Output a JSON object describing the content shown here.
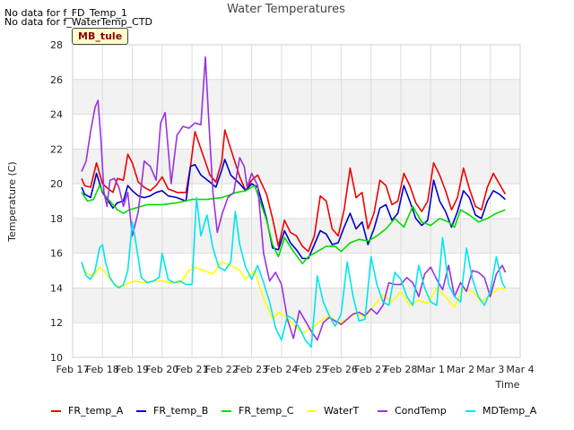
{
  "notes": [
    "No data for f_FD_Temp_1",
    "No data for f_WaterTemp_CTD"
  ],
  "badge": "MB_tule",
  "chart_data": {
    "type": "line",
    "title": "Water Temperatures",
    "xlabel": "Time",
    "ylabel": "Temperature (C)",
    "ylim": [
      10,
      28
    ],
    "yticks": [
      10,
      12,
      14,
      16,
      18,
      20,
      22,
      24,
      26,
      28
    ],
    "xlim": [
      "2023-02-17",
      "2023-03-04"
    ],
    "x_ticks": [
      "Feb 17",
      "Feb 18",
      "Feb 19",
      "Feb 20",
      "Feb 21",
      "Feb 22",
      "Feb 23",
      "Feb 24",
      "Feb 25",
      "Feb 26",
      "Feb 27",
      "Feb 28",
      "Mar 1",
      "Mar 2",
      "Mar 3",
      "Mar 4"
    ],
    "grid": true,
    "banded_background": true,
    "legend_position": "bottom",
    "series": [
      {
        "name": "FR_temp_A",
        "color": "#ee0000",
        "x": [
          0.3,
          0.4,
          0.6,
          0.8,
          1.0,
          1.2,
          1.35,
          1.5,
          1.7,
          1.85,
          2.0,
          2.2,
          2.4,
          2.6,
          2.8,
          3.0,
          3.2,
          3.5,
          3.8,
          3.95,
          4.1,
          4.3,
          4.6,
          4.8,
          5.0,
          5.1,
          5.3,
          5.6,
          5.8,
          6.0,
          6.2,
          6.5,
          6.7,
          6.9,
          7.1,
          7.3,
          7.5,
          7.7,
          7.9,
          8.1,
          8.3,
          8.5,
          8.7,
          8.9,
          9.1,
          9.3,
          9.5,
          9.7,
          9.9,
          10.1,
          10.3,
          10.5,
          10.7,
          10.9,
          11.1,
          11.3,
          11.5,
          11.7,
          11.9,
          12.1,
          12.3,
          12.5,
          12.7,
          12.9,
          13.1,
          13.3,
          13.5,
          13.7,
          13.9,
          14.1,
          14.3,
          14.5
        ],
        "y": [
          20.3,
          19.9,
          19.8,
          21.2,
          20.0,
          19.7,
          19.5,
          20.3,
          20.2,
          21.7,
          21.2,
          20.1,
          19.8,
          19.6,
          19.9,
          20.4,
          19.7,
          19.5,
          19.5,
          21.0,
          23.0,
          22.0,
          20.5,
          20.1,
          21.3,
          23.1,
          22.0,
          20.4,
          19.6,
          20.2,
          20.5,
          19.4,
          18.0,
          16.4,
          17.9,
          17.2,
          17.0,
          16.4,
          16.1,
          17.0,
          19.3,
          19.0,
          17.4,
          17.0,
          18.5,
          20.9,
          19.2,
          19.5,
          17.4,
          18.3,
          20.2,
          19.9,
          18.8,
          19.0,
          20.6,
          19.9,
          18.9,
          18.4,
          19.0,
          21.2,
          20.5,
          19.6,
          18.5,
          19.2,
          20.9,
          19.7,
          18.7,
          18.5,
          19.8,
          20.6,
          20.0,
          19.4
        ]
      },
      {
        "name": "FR_temp_B",
        "color": "#0000cc",
        "x": [
          0.3,
          0.4,
          0.6,
          0.8,
          1.0,
          1.2,
          1.35,
          1.5,
          1.7,
          1.85,
          2.0,
          2.2,
          2.4,
          2.6,
          2.8,
          3.0,
          3.2,
          3.5,
          3.8,
          3.95,
          4.1,
          4.3,
          4.6,
          4.8,
          5.0,
          5.1,
          5.3,
          5.6,
          5.8,
          6.0,
          6.2,
          6.5,
          6.7,
          6.9,
          7.1,
          7.3,
          7.5,
          7.7,
          7.9,
          8.1,
          8.3,
          8.5,
          8.7,
          8.9,
          9.1,
          9.3,
          9.5,
          9.7,
          9.9,
          10.1,
          10.3,
          10.5,
          10.7,
          10.9,
          11.1,
          11.3,
          11.5,
          11.7,
          11.9,
          12.1,
          12.3,
          12.5,
          12.7,
          12.9,
          13.1,
          13.3,
          13.5,
          13.7,
          13.9,
          14.1,
          14.3,
          14.5
        ],
        "y": [
          19.8,
          19.4,
          19.2,
          20.6,
          19.5,
          19.0,
          18.6,
          18.9,
          19.0,
          19.9,
          19.6,
          19.3,
          19.2,
          19.3,
          19.5,
          19.6,
          19.3,
          19.2,
          19.0,
          21.0,
          21.1,
          20.5,
          20.1,
          19.8,
          20.8,
          21.4,
          20.5,
          20.0,
          19.6,
          20.0,
          19.8,
          18.0,
          16.3,
          16.2,
          17.3,
          16.6,
          16.2,
          15.7,
          15.7,
          16.5,
          17.3,
          17.1,
          16.5,
          16.6,
          17.5,
          18.3,
          17.4,
          17.8,
          16.5,
          17.4,
          18.6,
          18.8,
          17.9,
          18.3,
          19.9,
          19.0,
          18.0,
          17.6,
          17.9,
          20.2,
          19.0,
          18.4,
          17.5,
          18.4,
          19.6,
          19.2,
          18.2,
          18.0,
          19.0,
          19.6,
          19.4,
          19.1
        ]
      },
      {
        "name": "FR_temp_C",
        "color": "#00dd00",
        "x": [
          0.3,
          0.5,
          0.7,
          0.9,
          1.1,
          1.3,
          1.5,
          1.7,
          1.9,
          2.1,
          2.5,
          3.0,
          3.5,
          4.0,
          4.5,
          5.0,
          5.5,
          5.8,
          6.1,
          6.5,
          6.7,
          6.9,
          7.1,
          7.4,
          7.7,
          7.9,
          8.2,
          8.5,
          8.8,
          9.0,
          9.3,
          9.6,
          9.9,
          10.2,
          10.5,
          10.8,
          11.1,
          11.4,
          11.7,
          12.0,
          12.3,
          12.6,
          12.8,
          13.0,
          13.3,
          13.6,
          13.9,
          14.2,
          14.5
        ],
        "y": [
          19.5,
          19.0,
          19.1,
          19.9,
          19.3,
          18.9,
          18.5,
          18.3,
          18.5,
          18.6,
          18.8,
          18.8,
          18.9,
          19.1,
          19.1,
          19.2,
          19.5,
          19.6,
          19.9,
          17.9,
          16.5,
          15.8,
          16.9,
          16.1,
          15.4,
          15.8,
          16.1,
          16.4,
          16.4,
          16.1,
          16.6,
          16.8,
          16.7,
          17.0,
          17.4,
          18.0,
          17.5,
          18.7,
          17.8,
          17.6,
          18.0,
          17.8,
          17.5,
          18.5,
          18.2,
          17.8,
          18.0,
          18.3,
          18.5
        ]
      },
      {
        "name": "WaterT",
        "color": "#ffff00",
        "x": [
          0.3,
          0.5,
          0.7,
          0.9,
          1.1,
          1.3,
          1.5,
          1.7,
          1.9,
          2.1,
          2.4,
          2.7,
          3.0,
          3.3,
          3.6,
          3.9,
          4.1,
          4.4,
          4.7,
          5.0,
          5.3,
          5.6,
          5.8,
          6.1,
          6.4,
          6.7,
          6.9,
          7.1,
          7.3,
          7.5,
          7.7,
          7.9,
          8.1,
          8.3,
          8.6,
          8.9,
          9.2,
          9.5,
          9.8,
          10.1,
          10.4,
          10.7,
          11.0,
          11.3,
          11.6,
          11.9,
          12.2,
          12.5,
          12.8,
          13.1,
          13.4,
          13.7,
          14.0,
          14.3,
          14.5
        ],
        "y": [
          15.3,
          14.8,
          14.7,
          15.2,
          14.9,
          14.4,
          14.1,
          14.1,
          14.3,
          14.4,
          14.3,
          14.4,
          14.4,
          14.3,
          14.3,
          15.0,
          15.2,
          15.0,
          14.8,
          15.5,
          15.3,
          15.0,
          14.5,
          15.0,
          13.4,
          12.2,
          12.6,
          12.4,
          12.1,
          11.7,
          11.4,
          11.6,
          11.8,
          12.1,
          12.4,
          12.0,
          12.2,
          12.6,
          12.3,
          13.0,
          13.6,
          13.2,
          13.8,
          13.0,
          13.3,
          13.1,
          14.0,
          13.5,
          12.9,
          14.0,
          13.8,
          13.2,
          13.6,
          14.0,
          13.9
        ]
      },
      {
        "name": "CondTemp",
        "color": "#9933dd",
        "x": [
          0.3,
          0.45,
          0.6,
          0.75,
          0.85,
          0.95,
          1.05,
          1.15,
          1.25,
          1.4,
          1.55,
          1.7,
          1.85,
          2.0,
          2.2,
          2.4,
          2.6,
          2.8,
          2.95,
          3.1,
          3.3,
          3.5,
          3.7,
          3.9,
          4.1,
          4.3,
          4.45,
          4.55,
          4.7,
          4.85,
          5.0,
          5.2,
          5.4,
          5.6,
          5.75,
          5.85,
          6.0,
          6.2,
          6.4,
          6.6,
          6.8,
          7.0,
          7.2,
          7.4,
          7.6,
          7.8,
          8.0,
          8.2,
          8.4,
          8.6,
          8.8,
          9.0,
          9.2,
          9.4,
          9.6,
          9.8,
          10.0,
          10.2,
          10.4,
          10.6,
          10.8,
          11.0,
          11.2,
          11.4,
          11.6,
          11.8,
          12.0,
          12.2,
          12.4,
          12.6,
          12.8,
          13.0,
          13.2,
          13.4,
          13.6,
          13.8,
          14.0,
          14.2,
          14.4,
          14.5
        ],
        "y": [
          20.7,
          21.3,
          23.0,
          24.4,
          24.8,
          22.5,
          19.5,
          18.7,
          20.2,
          20.3,
          19.8,
          18.7,
          19.5,
          17.0,
          18.4,
          21.3,
          21.0,
          20.2,
          23.5,
          24.1,
          20.0,
          22.8,
          23.3,
          23.2,
          23.5,
          23.4,
          27.3,
          24.0,
          19.5,
          17.2,
          18.2,
          19.2,
          19.5,
          21.5,
          21.0,
          19.8,
          20.6,
          19.9,
          16.0,
          14.4,
          14.9,
          14.2,
          12.2,
          11.1,
          12.7,
          12.1,
          11.5,
          11.0,
          12.0,
          12.3,
          12.1,
          11.9,
          12.2,
          12.5,
          12.6,
          12.4,
          12.8,
          12.5,
          13.0,
          14.3,
          14.2,
          14.2,
          14.6,
          14.3,
          13.5,
          14.8,
          15.2,
          14.5,
          13.9,
          15.3,
          13.5,
          14.3,
          13.8,
          15.0,
          14.9,
          14.6,
          13.5,
          14.8,
          15.3,
          14.9
        ]
      },
      {
        "name": "MDTemp_A",
        "color": "#00e5ee",
        "x": [
          0.3,
          0.45,
          0.6,
          0.75,
          0.9,
          1.0,
          1.1,
          1.25,
          1.4,
          1.55,
          1.7,
          1.85,
          2.0,
          2.1,
          2.3,
          2.5,
          2.7,
          2.9,
          3.0,
          3.2,
          3.4,
          3.6,
          3.8,
          4.0,
          4.15,
          4.3,
          4.5,
          4.7,
          4.9,
          5.1,
          5.3,
          5.45,
          5.6,
          5.8,
          6.0,
          6.2,
          6.4,
          6.6,
          6.8,
          7.0,
          7.2,
          7.4,
          7.6,
          7.8,
          8.0,
          8.2,
          8.4,
          8.6,
          8.8,
          9.0,
          9.2,
          9.4,
          9.6,
          9.8,
          10.0,
          10.2,
          10.4,
          10.6,
          10.8,
          11.0,
          11.2,
          11.4,
          11.6,
          11.8,
          12.0,
          12.2,
          12.4,
          12.6,
          12.8,
          13.0,
          13.2,
          13.4,
          13.6,
          13.8,
          14.0,
          14.2,
          14.4,
          14.5
        ],
        "y": [
          15.5,
          14.7,
          14.5,
          15.0,
          16.3,
          16.5,
          15.5,
          14.6,
          14.2,
          14.0,
          14.2,
          15.0,
          17.8,
          16.8,
          14.6,
          14.3,
          14.4,
          14.6,
          16.0,
          14.5,
          14.3,
          14.4,
          14.2,
          14.2,
          19.2,
          17.0,
          18.2,
          16.3,
          15.2,
          15.0,
          15.5,
          18.4,
          16.5,
          15.2,
          14.5,
          15.3,
          14.3,
          13.2,
          11.7,
          11.0,
          12.4,
          12.2,
          11.7,
          11.0,
          10.6,
          14.7,
          13.2,
          12.4,
          11.8,
          12.5,
          15.5,
          13.5,
          12.1,
          12.2,
          15.8,
          14.2,
          13.2,
          13.0,
          14.9,
          14.5,
          13.5,
          13.0,
          15.3,
          14.0,
          13.2,
          13.0,
          16.9,
          14.2,
          13.5,
          13.2,
          16.3,
          14.5,
          13.5,
          13.0,
          13.8,
          15.8,
          14.3,
          14.0
        ]
      }
    ]
  }
}
